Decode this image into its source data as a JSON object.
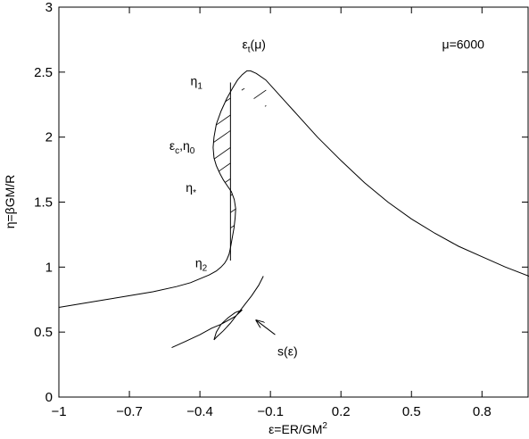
{
  "chart_data": {
    "type": "line",
    "title": "",
    "xlabel": {
      "main": "ε=ER/GM",
      "sup": "2"
    },
    "ylabel": "η=βGM/R",
    "xlim": [
      -1,
      1
    ],
    "ylim": [
      0,
      3
    ],
    "xticks": [
      -1,
      -0.7,
      -0.4,
      -0.1,
      0.2,
      0.5,
      0.8
    ],
    "xtick_labels": [
      "−1",
      "−0.7",
      "−0.4",
      "−0.1",
      "0.2",
      "0.5",
      "0.8"
    ],
    "yticks": [
      0,
      0.5,
      1,
      1.5,
      2,
      2.5,
      3
    ],
    "ytick_labels": [
      "0",
      "0.5",
      "1",
      "1.5",
      "2",
      "2.5",
      "3"
    ],
    "grid": false,
    "legend": "none",
    "series": [
      {
        "id": "spiral",
        "x": [
          -1.0,
          -0.9,
          -0.8,
          -0.7,
          -0.6,
          -0.5,
          -0.44,
          -0.4,
          -0.36,
          -0.33,
          -0.31,
          -0.295,
          -0.285,
          -0.276,
          -0.27,
          -0.263,
          -0.255,
          -0.25,
          -0.248,
          -0.254,
          -0.266,
          -0.285,
          -0.3,
          -0.315,
          -0.33,
          -0.34,
          -0.344,
          -0.34,
          -0.33,
          -0.31,
          -0.285,
          -0.26,
          -0.24,
          -0.22,
          -0.2,
          -0.185,
          -0.16,
          -0.12,
          -0.08,
          -0.04,
          0.0,
          0.1,
          0.2,
          0.3,
          0.4,
          0.5,
          0.6,
          0.7,
          0.8,
          0.9,
          1.0
        ],
        "y": [
          0.69,
          0.72,
          0.75,
          0.78,
          0.81,
          0.85,
          0.88,
          0.91,
          0.94,
          0.97,
          1.0,
          1.03,
          1.06,
          1.1,
          1.15,
          1.22,
          1.3,
          1.38,
          1.45,
          1.52,
          1.58,
          1.63,
          1.67,
          1.72,
          1.78,
          1.84,
          1.92,
          2.0,
          2.1,
          2.2,
          2.3,
          2.38,
          2.44,
          2.48,
          2.51,
          2.51,
          2.49,
          2.44,
          2.36,
          2.28,
          2.2,
          2.0,
          1.82,
          1.65,
          1.5,
          1.37,
          1.26,
          1.16,
          1.08,
          1.0,
          0.93
        ]
      },
      {
        "id": "s-curve",
        "x": [
          -0.52,
          -0.46,
          -0.4,
          -0.35,
          -0.31,
          -0.28,
          -0.25,
          -0.22,
          -0.25,
          -0.28,
          -0.31,
          -0.33,
          -0.34,
          -0.33,
          -0.3,
          -0.27,
          -0.24,
          -0.21,
          -0.18,
          -0.15,
          -0.13
        ],
        "y": [
          0.38,
          0.43,
          0.48,
          0.53,
          0.56,
          0.59,
          0.62,
          0.67,
          0.65,
          0.61,
          0.56,
          0.5,
          0.44,
          0.46,
          0.51,
          0.57,
          0.64,
          0.71,
          0.78,
          0.86,
          0.93
        ]
      }
    ],
    "hatched_region": {
      "x_boundary": -0.27,
      "y_range": [
        1.05,
        2.42
      ],
      "hatch_y": [
        1.18,
        1.3,
        1.42,
        1.55,
        1.68,
        1.8,
        1.92,
        2.05,
        2.17,
        2.3
      ]
    },
    "annotations": [
      {
        "id": "eps-t",
        "main": "ε",
        "sub": "t",
        "tail": "(μ)",
        "x": -0.22,
        "y": 2.68
      },
      {
        "id": "mu",
        "text": "μ=6000",
        "x": 0.63,
        "y": 2.68
      },
      {
        "id": "eta1",
        "main": "η",
        "sub": "1",
        "tail": "",
        "x": -0.44,
        "y": 2.4
      },
      {
        "id": "eps-c",
        "main": "ε",
        "sub": "c",
        "tail": ",η",
        "sub2": "0",
        "x": -0.53,
        "y": 1.9
      },
      {
        "id": "eta-star",
        "main": "η",
        "sub": "*",
        "tail": "",
        "x": -0.46,
        "y": 1.58
      },
      {
        "id": "eta2",
        "main": "η",
        "sub": "2",
        "tail": "",
        "x": -0.42,
        "y": 1.0
      },
      {
        "id": "s-eps",
        "text": "s(ε)",
        "x": -0.07,
        "y": 0.32
      }
    ],
    "arrow": {
      "from": [
        -0.08,
        0.48
      ],
      "to": [
        -0.16,
        0.59
      ]
    }
  }
}
